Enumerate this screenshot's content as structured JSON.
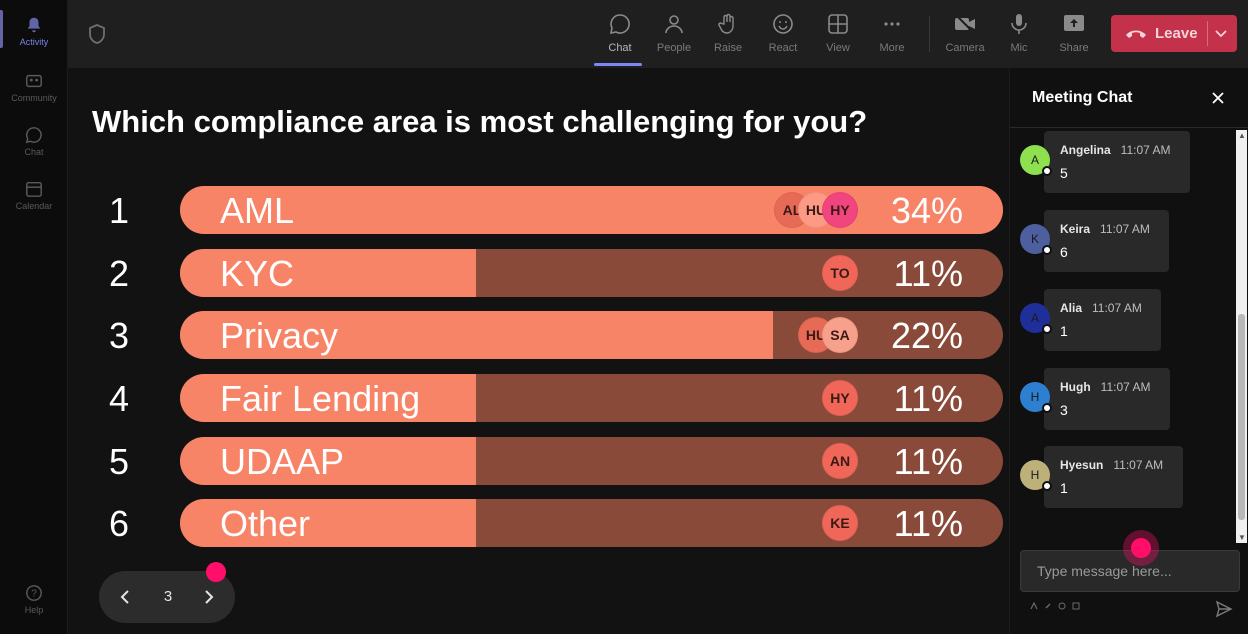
{
  "rail": {
    "items": [
      {
        "label": "Activity",
        "icon": "bell-icon"
      },
      {
        "label": "Community",
        "icon": "community-icon"
      },
      {
        "label": "Chat",
        "icon": "chat-icon"
      },
      {
        "label": "Calendar",
        "icon": "calendar-icon"
      },
      {
        "label": "Help",
        "icon": "help-icon"
      }
    ]
  },
  "toolbar": {
    "chat": "Chat",
    "people": "People",
    "raise": "Raise",
    "react": "React",
    "view": "View",
    "more": "More",
    "camera": "Camera",
    "mic": "Mic",
    "share": "Share",
    "leave": "Leave"
  },
  "poll": {
    "question": "Which compliance area is most challenging for you?",
    "options": [
      {
        "num": "1",
        "label": "AML",
        "percent": "34%",
        "fill": 1.0,
        "voters": [
          {
            "initials": "AL",
            "color": "#e66a55"
          },
          {
            "initials": "HU",
            "color": "#fc9a86"
          },
          {
            "initials": "HY",
            "color": "#f0457e"
          }
        ]
      },
      {
        "num": "2",
        "label": "KYC",
        "percent": "11%",
        "fill": 0.36,
        "voters": [
          {
            "initials": "TO",
            "color": "#f0675a"
          }
        ]
      },
      {
        "num": "3",
        "label": "Privacy",
        "percent": "22%",
        "fill": 0.72,
        "voters": [
          {
            "initials": "HU",
            "color": "#e66a55"
          },
          {
            "initials": "SA",
            "color": "#f7a08b"
          }
        ]
      },
      {
        "num": "4",
        "label": "Fair Lending",
        "percent": "11%",
        "fill": 0.36,
        "voters": [
          {
            "initials": "HY",
            "color": "#f0675a"
          }
        ]
      },
      {
        "num": "5",
        "label": "UDAAP",
        "percent": "11%",
        "fill": 0.36,
        "voters": [
          {
            "initials": "AN",
            "color": "#f0675a"
          }
        ]
      },
      {
        "num": "6",
        "label": "Other",
        "percent": "11%",
        "fill": 0.36,
        "voters": [
          {
            "initials": "KE",
            "color": "#f0675a"
          }
        ]
      }
    ],
    "bar_color": "#f88467",
    "track_color": "#8a4a3a"
  },
  "pager": {
    "page": "3"
  },
  "chat": {
    "title": "Meeting Chat",
    "messages": [
      {
        "initial": "A",
        "name": "Angelina",
        "time": "11:07 AM",
        "text": "5",
        "avatar_color": "#8ee04f"
      },
      {
        "initial": "K",
        "name": "Keira",
        "time": "11:07 AM",
        "text": "6",
        "avatar_color": "#4e5fa0"
      },
      {
        "initial": "A",
        "name": "Alia",
        "time": "11:07 AM",
        "text": "1",
        "avatar_color": "#1f2f9a"
      },
      {
        "initial": "H",
        "name": "Hugh",
        "time": "11:07 AM",
        "text": "3",
        "avatar_color": "#2d7fd0"
      },
      {
        "initial": "H",
        "name": "Hyesun",
        "time": "11:07 AM",
        "text": "1",
        "avatar_color": "#bdb079"
      }
    ],
    "compose_placeholder": "Type message here..."
  }
}
